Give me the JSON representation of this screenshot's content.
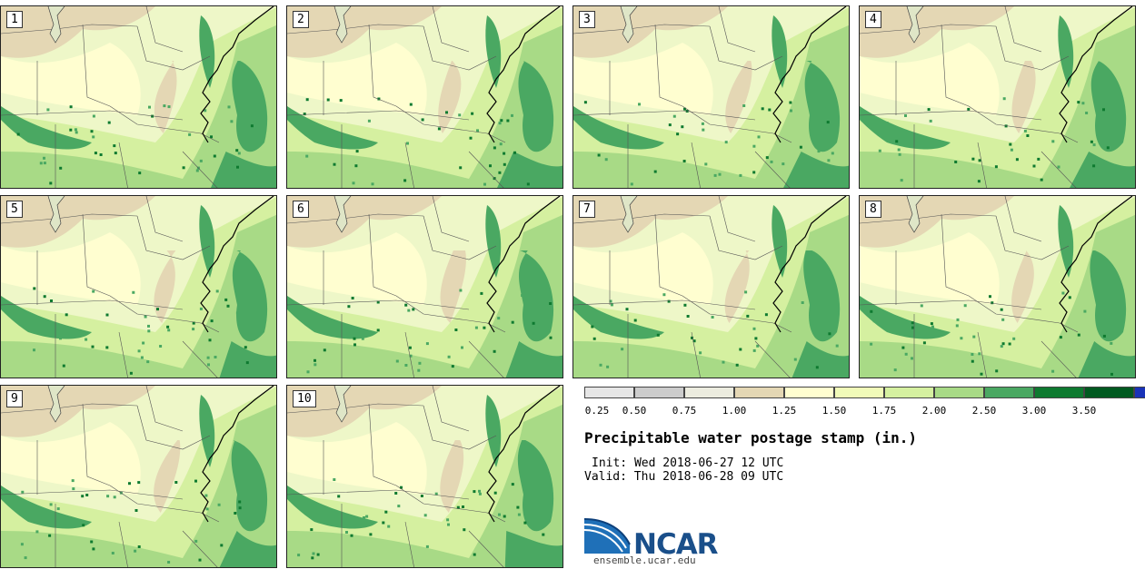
{
  "panels": [
    "1",
    "2",
    "3",
    "4",
    "5",
    "6",
    "7",
    "8",
    "9",
    "10"
  ],
  "legend": {
    "colors": [
      "#e6e6e6",
      "#cccccc",
      "#ececdf",
      "#e4d7b4",
      "#fffed0",
      "#f0fab8",
      "#d5f0a0",
      "#a8da86",
      "#4aa862",
      "#0e7a30",
      "#005a20",
      "#1a33b8"
    ],
    "ticks": [
      "0.25",
      "0.50",
      "0.75",
      "1.00",
      "1.25",
      "1.50",
      "1.75",
      "2.00",
      "2.50",
      "3.00",
      "3.50"
    ]
  },
  "title": "Precipitable water postage stamp (in.)",
  "init": "Init: Wed 2018-06-27 12 UTC",
  "valid": "Valid: Thu 2018-06-28 09 UTC",
  "logo": {
    "name": "NCAR",
    "url": "ensemble.ucar.edu"
  }
}
